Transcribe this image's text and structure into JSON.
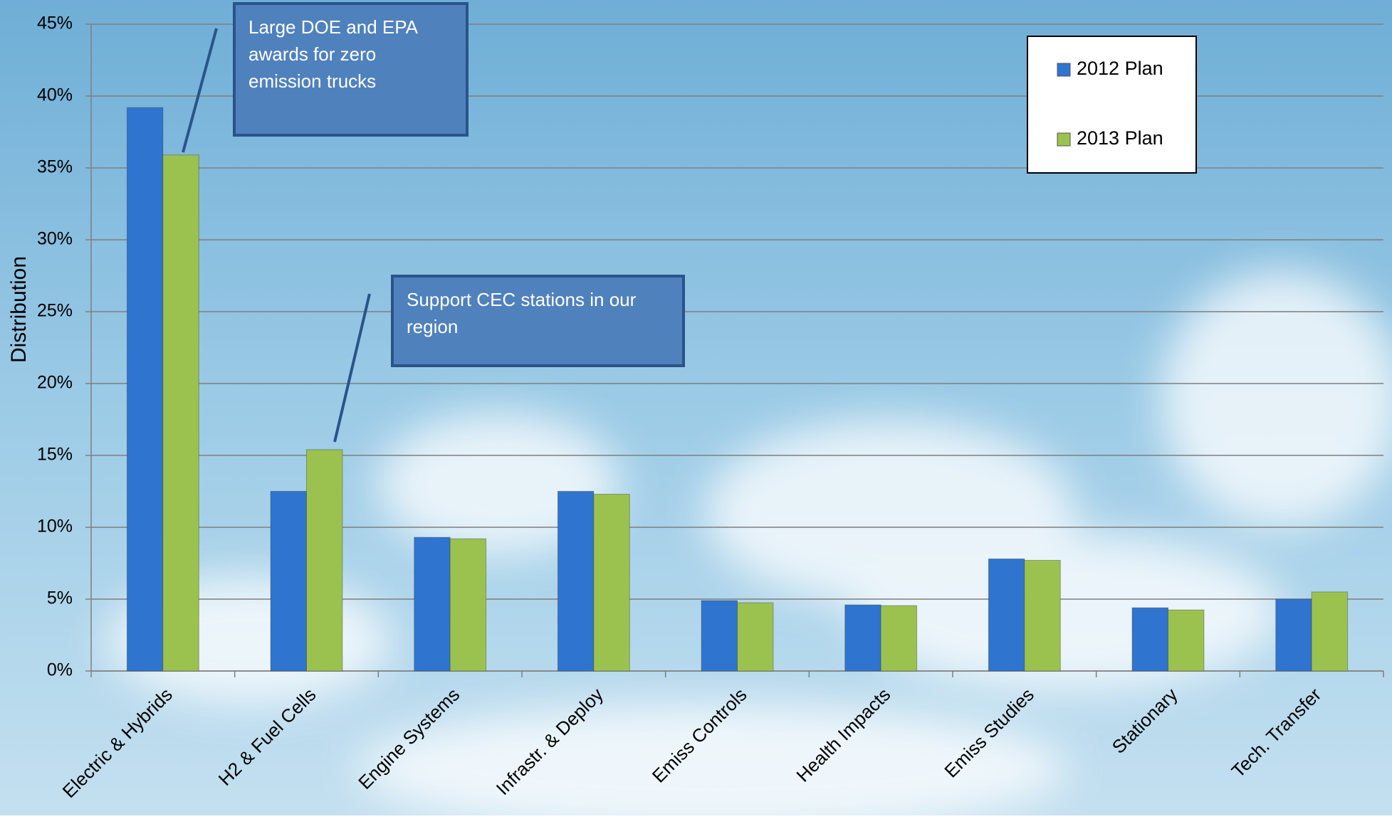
{
  "chart_data": {
    "type": "bar",
    "y_label": "Distribution",
    "categories": [
      "Electric & Hybrids",
      "H2 & Fuel Cells",
      "Engine Systems",
      "Infrastr. & Deploy",
      "Emiss Controls",
      "Health Impacts",
      "Emiss Studies",
      "Stationary",
      "Tech. Transfer"
    ],
    "series": [
      {
        "name": "2012 Plan",
        "color": "#2f74cf",
        "values": [
          39.2,
          12.5,
          9.3,
          12.5,
          4.9,
          4.6,
          7.8,
          4.4,
          5.0
        ]
      },
      {
        "name": "2013 Plan",
        "color": "#9bc24f",
        "values": [
          35.9,
          15.4,
          9.2,
          12.3,
          4.75,
          4.55,
          7.7,
          4.25,
          5.5
        ]
      }
    ],
    "ylim": [
      0,
      45
    ],
    "yticks": [
      {
        "value": 0,
        "label": "0%"
      },
      {
        "value": 5,
        "label": "5%"
      },
      {
        "value": 10,
        "label": "10%"
      },
      {
        "value": 15,
        "label": "15%"
      },
      {
        "value": 20,
        "label": "20%"
      },
      {
        "value": 25,
        "label": "25%"
      },
      {
        "value": 30,
        "label": "30%"
      },
      {
        "value": 35,
        "label": "35%"
      },
      {
        "value": 40,
        "label": "40%"
      },
      {
        "value": 45,
        "label": "45%"
      }
    ],
    "grid": true,
    "legend": "upper right",
    "annotations": [
      "Large DOE and EPA awards for zero emission trucks",
      "Support CEC stations in our region"
    ]
  }
}
